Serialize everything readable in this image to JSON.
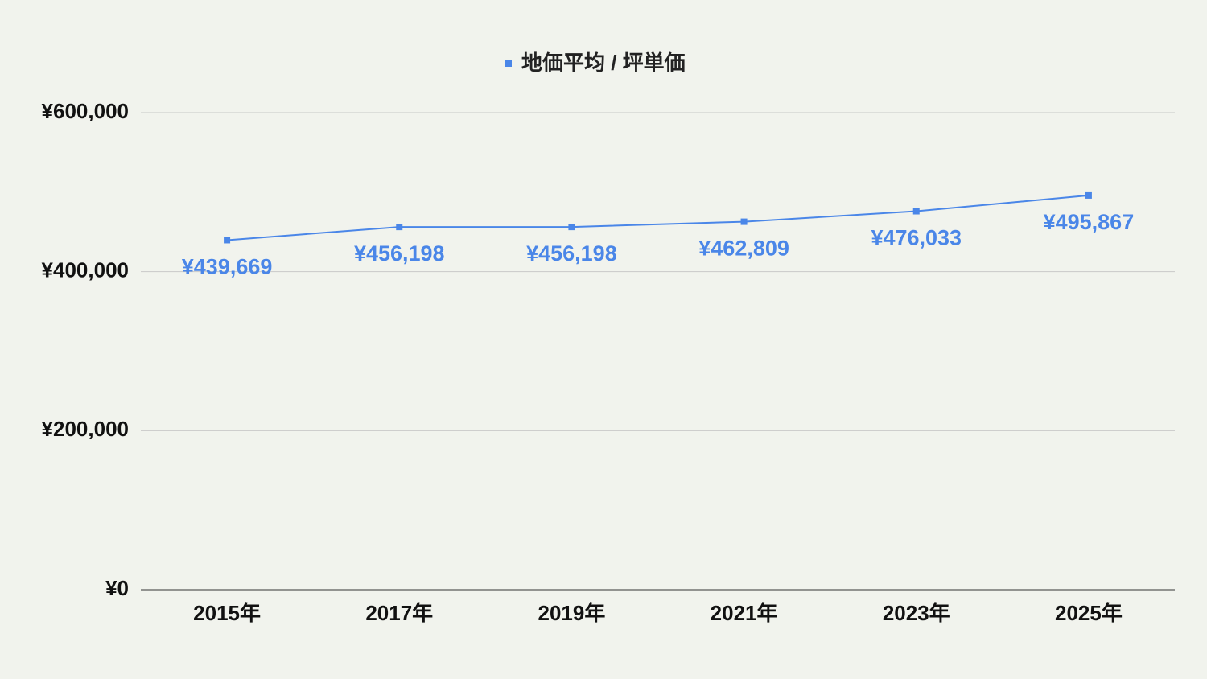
{
  "chart_data": {
    "type": "line",
    "categories": [
      "2015年",
      "2017年",
      "2019年",
      "2021年",
      "2023年",
      "2025年"
    ],
    "series": [
      {
        "name": "地価平均 / 坪単価",
        "color": "#4a86e8",
        "values": [
          439669,
          456198,
          456198,
          462809,
          476033,
          495867
        ],
        "value_labels": [
          "¥439,669",
          "¥456,198",
          "¥456,198",
          "¥462,809",
          "¥476,033",
          "¥495,867"
        ]
      }
    ],
    "ylim": [
      0,
      600000
    ],
    "yticks": [
      {
        "value": 0,
        "label": "¥0"
      },
      {
        "value": 200000,
        "label": "¥200,000"
      },
      {
        "value": 400000,
        "label": "¥400,000"
      },
      {
        "value": 600000,
        "label": "¥600,000"
      }
    ],
    "grid": true,
    "legend": "top"
  }
}
